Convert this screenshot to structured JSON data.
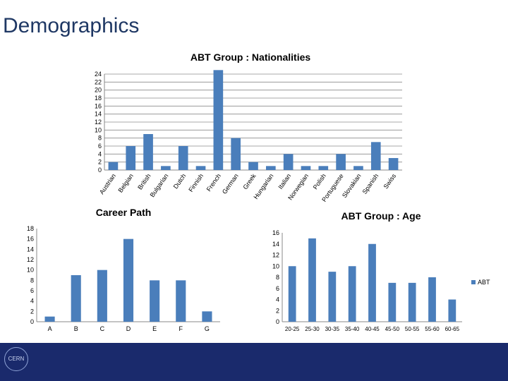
{
  "slide": {
    "title": "Demographics"
  },
  "footer": {
    "logo_text": "CERN"
  },
  "chart_data": [
    {
      "id": "nationalities",
      "type": "bar",
      "title": "ABT Group : Nationalities",
      "categories": [
        "Austrian",
        "Belgian",
        "British",
        "Bulgarian",
        "Dutch",
        "Finnish",
        "French",
        "German",
        "Greek",
        "Hungarian",
        "Italian",
        "Norwegian",
        "Polish",
        "Portuguese",
        "Slovakian",
        "Spanish",
        "Swiss"
      ],
      "series": [
        {
          "values": [
            2,
            6,
            9,
            1,
            6,
            1,
            25,
            8,
            2,
            1,
            4,
            1,
            1,
            4,
            1,
            7,
            3
          ]
        }
      ],
      "yticks": [
        0,
        2,
        4,
        6,
        8,
        10,
        12,
        14,
        16,
        18,
        20,
        22,
        24
      ],
      "ylim": [
        0,
        24
      ],
      "grid": true,
      "color": "#4a7ebb"
    },
    {
      "id": "career",
      "type": "bar",
      "title": "Career Path",
      "categories": [
        "A",
        "B",
        "C",
        "D",
        "E",
        "F",
        "G"
      ],
      "series": [
        {
          "values": [
            1,
            9,
            10,
            16,
            8,
            8,
            2
          ]
        }
      ],
      "yticks": [
        0,
        2,
        4,
        6,
        8,
        10,
        12,
        14,
        16,
        18
      ],
      "ylim": [
        0,
        18
      ],
      "grid": false,
      "color": "#4a7ebb"
    },
    {
      "id": "age",
      "type": "bar",
      "title": "ABT Group : Age",
      "categories": [
        "20-25",
        "25-30",
        "30-35",
        "35-40",
        "40-45",
        "45-50",
        "50-55",
        "55-60",
        "60-65"
      ],
      "series": [
        {
          "name": "ABT",
          "values": [
            10,
            15,
            9,
            10,
            14,
            7,
            7,
            8,
            4
          ]
        }
      ],
      "yticks": [
        0,
        2,
        4,
        6,
        8,
        10,
        12,
        14,
        16
      ],
      "ylim": [
        0,
        16
      ],
      "grid": false,
      "legend": "right",
      "color": "#4a7ebb"
    }
  ]
}
